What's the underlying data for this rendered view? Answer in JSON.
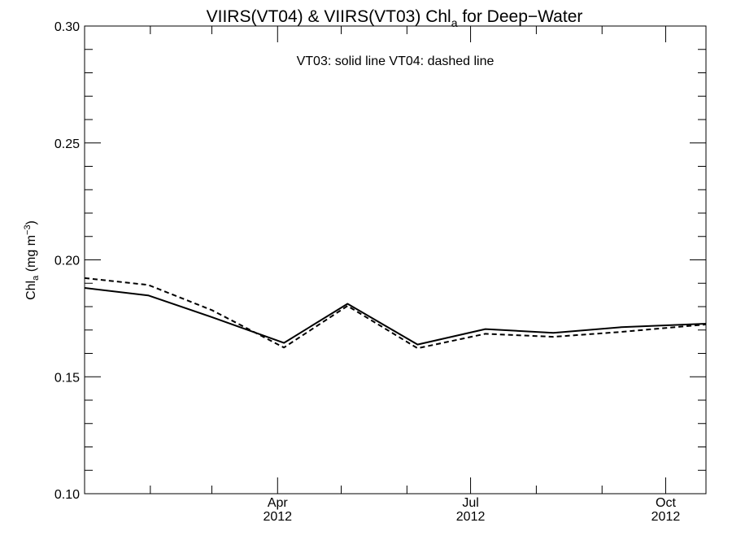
{
  "chart_data": {
    "type": "line",
    "title": "VIIRS(VT04) & VIIRS(VT03)  Chl",
    "title_subscript": "a",
    "title_suffix": " for Deep−Water",
    "ylabel": "Chl",
    "ylabel_subscript": "a",
    "ylabel_unit": " (mg m",
    "ylabel_unit_sup": "−3",
    "ylabel_unit_close": ")",
    "annotation": "VT03: solid line   VT04: dashed line",
    "xlim": [
      "2012-01-01",
      "2012-10-20"
    ],
    "ylim": [
      0.1,
      0.3
    ],
    "y_ticks": [
      0.1,
      0.15,
      0.2,
      0.25,
      0.3
    ],
    "y_tick_labels": [
      "0.10",
      "0.15",
      "0.20",
      "0.25",
      "0.30"
    ],
    "y_minor_step": 0.01,
    "x_major_ticks": [
      {
        "date": "2012-04-01",
        "label": "Apr",
        "sublabel": "2012"
      },
      {
        "date": "2012-07-01",
        "label": "Jul",
        "sublabel": "2012"
      },
      {
        "date": "2012-10-01",
        "label": "Oct",
        "sublabel": "2012"
      }
    ],
    "x_minor_ticks": [
      "2012-02-01",
      "2012-03-01",
      "2012-05-01",
      "2012-06-01",
      "2012-08-01",
      "2012-09-01"
    ],
    "x": [
      "2012-01-01",
      "2012-01-31",
      "2012-03-01",
      "2012-04-04",
      "2012-05-04",
      "2012-06-06",
      "2012-07-08",
      "2012-08-09",
      "2012-09-10",
      "2012-10-20"
    ],
    "series": [
      {
        "name": "VT03",
        "style": "solid",
        "values": [
          0.188,
          0.1848,
          0.1755,
          0.1645,
          0.1812,
          0.1638,
          0.1704,
          0.1688,
          0.1712,
          0.1727
        ]
      },
      {
        "name": "VT04",
        "style": "dashed",
        "values": [
          0.1922,
          0.1893,
          0.1785,
          0.1625,
          0.1803,
          0.1622,
          0.1684,
          0.1671,
          0.1692,
          0.1724
        ]
      }
    ]
  }
}
